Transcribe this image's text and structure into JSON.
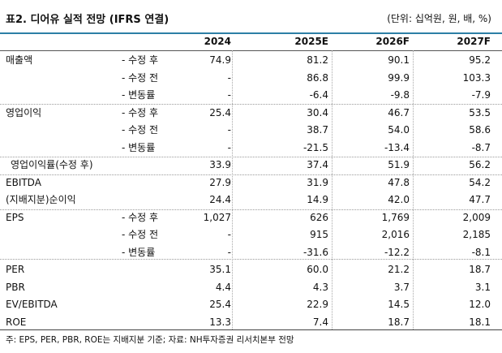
{
  "title": "표2. 디어유 실적 전망 (IFRS 연결)",
  "unit": "(단위: 십억원, 원, 배, %)",
  "headers": [
    "2024",
    "2025E",
    "2026F",
    "2027F"
  ],
  "rows": [
    {
      "label": "매출액",
      "sub": "- 수정 후",
      "values": [
        "74.9",
        "81.2",
        "90.1",
        "95.2"
      ]
    },
    {
      "label": "",
      "sub": "- 수정 전",
      "values": [
        "-",
        "86.8",
        "99.9",
        "103.3"
      ]
    },
    {
      "label": "",
      "sub": "- 변동률",
      "values": [
        "-",
        "-6.4",
        "-9.8",
        "-7.9"
      ]
    },
    {
      "label": "영업이익",
      "sub": "- 수정 후",
      "values": [
        "25.4",
        "30.4",
        "46.7",
        "53.5"
      ]
    },
    {
      "label": "",
      "sub": "- 수정 전",
      "values": [
        "-",
        "38.7",
        "54.0",
        "58.6"
      ]
    },
    {
      "label": "",
      "sub": "- 변동률",
      "values": [
        "-",
        "-21.5",
        "-13.4",
        "-8.7"
      ]
    },
    {
      "label": "영업이익률(수정 후)",
      "sub": "",
      "values": [
        "33.9",
        "37.4",
        "51.9",
        "56.2"
      ]
    },
    {
      "label": "EBITDA",
      "sub": "",
      "values": [
        "27.9",
        "31.9",
        "47.8",
        "54.2"
      ]
    },
    {
      "label": "(지배지분)순이익",
      "sub": "",
      "values": [
        "24.4",
        "14.9",
        "42.0",
        "47.7"
      ]
    },
    {
      "label": "EPS",
      "sub": "- 수정 후",
      "values": [
        "1,027",
        "626",
        "1,769",
        "2,009"
      ]
    },
    {
      "label": "",
      "sub": "- 수정 전",
      "values": [
        "-",
        "915",
        "2,016",
        "2,185"
      ]
    },
    {
      "label": "",
      "sub": "- 변동률",
      "values": [
        "-",
        "-31.6",
        "-12.2",
        "-8.1"
      ]
    },
    {
      "label": "PER",
      "sub": "",
      "values": [
        "35.1",
        "60.0",
        "21.2",
        "18.7"
      ]
    },
    {
      "label": "PBR",
      "sub": "",
      "values": [
        "4.4",
        "4.3",
        "3.7",
        "3.1"
      ]
    },
    {
      "label": "EV/EBITDA",
      "sub": "",
      "values": [
        "25.4",
        "22.9",
        "14.5",
        "12.0"
      ]
    },
    {
      "label": "ROE",
      "sub": "",
      "values": [
        "13.3",
        "7.4",
        "18.7",
        "18.1"
      ]
    }
  ],
  "footnote": "주: EPS, PER, PBR, ROE는 지배지분 기준; 자료: NH투자증권 리서치본부 전망",
  "colors": {
    "top_rule": "#2c7fa6"
  }
}
